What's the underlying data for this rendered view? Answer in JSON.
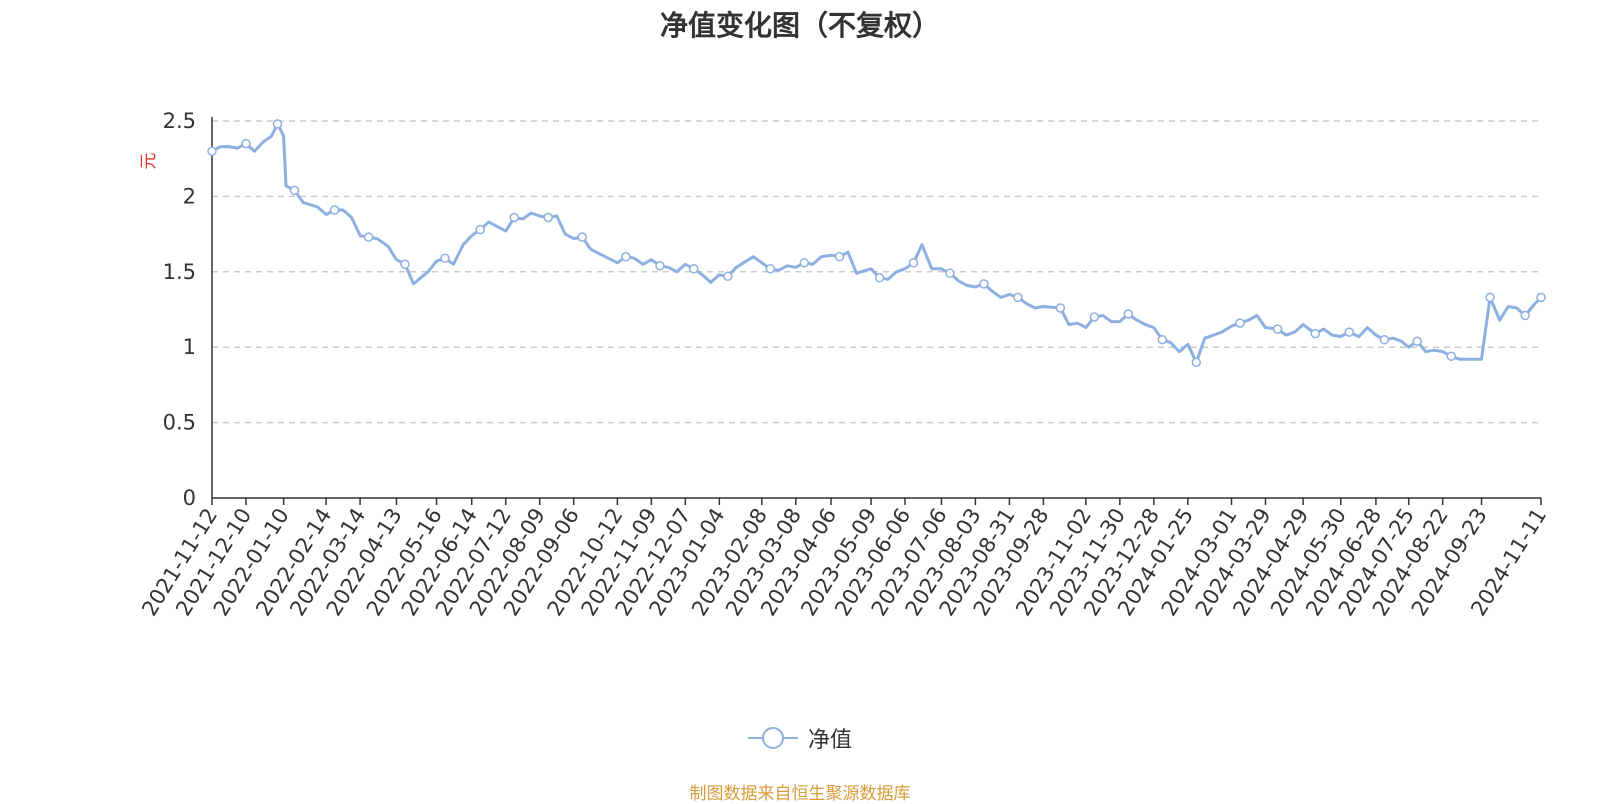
{
  "chart_data": {
    "type": "line",
    "title": "净值变化图（不复权）",
    "ylabel": "元",
    "xlabel": "",
    "ylim": [
      0,
      2.5
    ],
    "y_ticks": [
      "0",
      "0.5",
      "1",
      "1.5",
      "2",
      "2.5"
    ],
    "grid": "horizontal dashed",
    "legend_position": "bottom-center",
    "series_color": "#8eb0e0",
    "x_tick_labels": [
      "2021-11-12",
      "2021-12-10",
      "2022-01-10",
      "2022-02-14",
      "2022-03-14",
      "2022-04-13",
      "2022-05-16",
      "2022-06-14",
      "2022-07-12",
      "2022-08-09",
      "2022-09-06",
      "2022-10-12",
      "2022-11-09",
      "2022-12-07",
      "2023-01-04",
      "2023-02-08",
      "2023-03-08",
      "2023-04-06",
      "2023-05-09",
      "2023-06-06",
      "2023-07-06",
      "2023-08-03",
      "2023-08-31",
      "2023-09-28",
      "2023-11-02",
      "2023-11-30",
      "2023-12-28",
      "2024-01-25",
      "2024-03-01",
      "2024-03-29",
      "2024-04-29",
      "2024-05-30",
      "2024-06-28",
      "2024-07-25",
      "2024-08-22",
      "2024-09-23",
      "2024-11-11"
    ],
    "series": [
      {
        "name": "净值",
        "x": [
          "2021-11-12",
          "2021-11-19",
          "2021-11-26",
          "2021-12-03",
          "2021-12-10",
          "2021-12-17",
          "2021-12-24",
          "2021-12-31",
          "2022-01-05",
          "2022-01-07",
          "2022-01-10",
          "2022-01-12",
          "2022-01-19",
          "2022-01-26",
          "2022-02-07",
          "2022-02-14",
          "2022-02-21",
          "2022-02-28",
          "2022-03-07",
          "2022-03-14",
          "2022-03-21",
          "2022-03-28",
          "2022-04-06",
          "2022-04-13",
          "2022-04-20",
          "2022-04-27",
          "2022-05-09",
          "2022-05-16",
          "2022-05-23",
          "2022-05-30",
          "2022-06-07",
          "2022-06-14",
          "2022-06-21",
          "2022-06-28",
          "2022-07-05",
          "2022-07-12",
          "2022-07-19",
          "2022-07-26",
          "2022-08-02",
          "2022-08-09",
          "2022-08-16",
          "2022-08-23",
          "2022-08-30",
          "2022-09-06",
          "2022-09-13",
          "2022-09-20",
          "2022-09-27",
          "2022-10-12",
          "2022-10-19",
          "2022-10-26",
          "2022-11-02",
          "2022-11-09",
          "2022-11-16",
          "2022-11-23",
          "2022-11-30",
          "2022-12-07",
          "2022-12-14",
          "2022-12-21",
          "2022-12-28",
          "2023-01-04",
          "2023-01-11",
          "2023-01-18",
          "2023-02-01",
          "2023-02-08",
          "2023-02-15",
          "2023-02-22",
          "2023-03-01",
          "2023-03-08",
          "2023-03-15",
          "2023-03-22",
          "2023-03-29",
          "2023-04-06",
          "2023-04-13",
          "2023-04-20",
          "2023-04-27",
          "2023-05-09",
          "2023-05-16",
          "2023-05-23",
          "2023-05-30",
          "2023-06-06",
          "2023-06-13",
          "2023-06-20",
          "2023-06-28",
          "2023-07-06",
          "2023-07-13",
          "2023-07-20",
          "2023-07-27",
          "2023-08-03",
          "2023-08-10",
          "2023-08-17",
          "2023-08-24",
          "2023-08-31",
          "2023-09-07",
          "2023-09-14",
          "2023-09-21",
          "2023-09-28",
          "2023-10-12",
          "2023-10-19",
          "2023-10-26",
          "2023-11-02",
          "2023-11-09",
          "2023-11-16",
          "2023-11-23",
          "2023-11-30",
          "2023-12-07",
          "2023-12-14",
          "2023-12-21",
          "2023-12-28",
          "2024-01-04",
          "2024-01-11",
          "2024-01-18",
          "2024-01-25",
          "2024-02-01",
          "2024-02-08",
          "2024-02-22",
          "2024-03-01",
          "2024-03-08",
          "2024-03-15",
          "2024-03-22",
          "2024-03-29",
          "2024-04-08",
          "2024-04-15",
          "2024-04-22",
          "2024-04-29",
          "2024-05-09",
          "2024-05-16",
          "2024-05-23",
          "2024-05-30",
          "2024-06-06",
          "2024-06-14",
          "2024-06-21",
          "2024-06-28",
          "2024-07-05",
          "2024-07-12",
          "2024-07-19",
          "2024-07-25",
          "2024-08-01",
          "2024-08-08",
          "2024-08-15",
          "2024-08-22",
          "2024-08-29",
          "2024-09-05",
          "2024-09-12",
          "2024-09-23",
          "2024-09-30",
          "2024-10-08",
          "2024-10-15",
          "2024-10-22",
          "2024-10-29",
          "2024-11-05",
          "2024-11-11"
        ],
        "values": [
          2.3,
          2.33,
          2.33,
          2.32,
          2.35,
          2.3,
          2.36,
          2.4,
          2.48,
          2.45,
          2.4,
          2.07,
          2.04,
          1.96,
          1.93,
          1.88,
          1.91,
          1.91,
          1.86,
          1.74,
          1.73,
          1.72,
          1.67,
          1.58,
          1.55,
          1.42,
          1.5,
          1.57,
          1.59,
          1.55,
          1.68,
          1.74,
          1.78,
          1.83,
          1.8,
          1.77,
          1.86,
          1.85,
          1.89,
          1.87,
          1.86,
          1.87,
          1.75,
          1.72,
          1.73,
          1.65,
          1.62,
          1.56,
          1.6,
          1.59,
          1.55,
          1.58,
          1.54,
          1.53,
          1.5,
          1.55,
          1.52,
          1.48,
          1.43,
          1.48,
          1.47,
          1.53,
          1.6,
          1.56,
          1.52,
          1.51,
          1.54,
          1.53,
          1.56,
          1.55,
          1.6,
          1.61,
          1.6,
          1.63,
          1.49,
          1.52,
          1.46,
          1.45,
          1.5,
          1.52,
          1.56,
          1.68,
          1.52,
          1.52,
          1.49,
          1.44,
          1.41,
          1.4,
          1.42,
          1.37,
          1.33,
          1.35,
          1.33,
          1.29,
          1.26,
          1.27,
          1.26,
          1.15,
          1.16,
          1.13,
          1.2,
          1.21,
          1.17,
          1.17,
          1.22,
          1.18,
          1.15,
          1.13,
          1.05,
          1.03,
          0.97,
          1.02,
          0.9,
          1.06,
          1.1,
          1.14,
          1.16,
          1.18,
          1.21,
          1.13,
          1.12,
          1.08,
          1.1,
          1.15,
          1.09,
          1.12,
          1.08,
          1.07,
          1.1,
          1.07,
          1.13,
          1.08,
          1.05,
          1.06,
          1.04,
          1.0,
          1.04,
          0.97,
          0.98,
          0.97,
          0.94,
          0.92,
          0.92,
          0.92,
          1.33,
          1.18,
          1.27,
          1.26,
          1.21,
          1.28,
          1.33
        ]
      }
    ]
  },
  "legend": {
    "label": "净值"
  },
  "source_note": "制图数据来自恒生聚源数据库"
}
